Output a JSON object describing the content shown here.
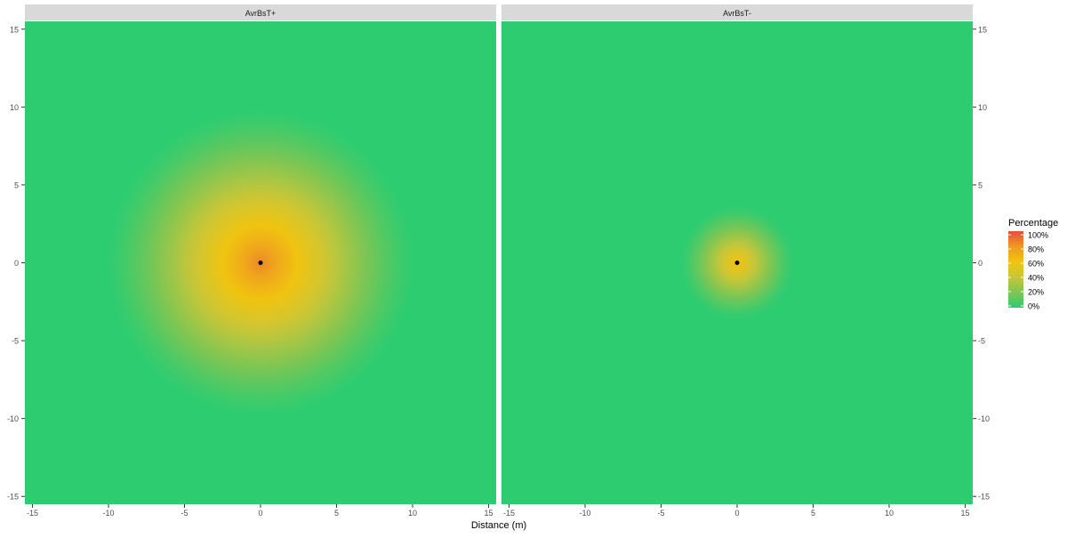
{
  "chart_data": {
    "type": "heatmap",
    "xlabel": "Distance (m)",
    "ylabel": "",
    "xlim": [
      -15.5,
      15.5
    ],
    "ylim": [
      -15.5,
      15.5
    ],
    "x_ticks": [
      -15,
      -10,
      -5,
      0,
      5,
      10,
      15
    ],
    "y_ticks": [
      -15,
      -10,
      -5,
      0,
      5,
      10,
      15
    ],
    "x_tick_labels": [
      "-15",
      "-10",
      "-5",
      "0",
      "5",
      "10",
      "15"
    ],
    "y_tick_labels": [
      "-15",
      "-10",
      "-5",
      "0",
      "5",
      "10",
      "15"
    ],
    "panels": [
      {
        "title": "AvrBsT+",
        "center": [
          0,
          0
        ],
        "peak_percentage": 85,
        "radius_m": 10,
        "marker": [
          0,
          0
        ]
      },
      {
        "title": "AvrBsT-",
        "center": [
          0,
          0
        ],
        "peak_percentage": 62,
        "radius_m": 3.7,
        "marker": [
          0,
          0
        ]
      }
    ],
    "legend": {
      "title": "Percentage",
      "position": "right",
      "breaks": [
        100,
        80,
        60,
        40,
        20,
        0
      ],
      "labels": [
        "100%",
        "80%",
        "60%",
        "40%",
        "20%",
        "0%"
      ],
      "colors": [
        {
          "value": 0,
          "color": "#2ecc71"
        },
        {
          "value": 20,
          "color": "#7ec653"
        },
        {
          "value": 40,
          "color": "#c9c638"
        },
        {
          "value": 60,
          "color": "#f1c40f"
        },
        {
          "value": 80,
          "color": "#ef9a22"
        },
        {
          "value": 100,
          "color": "#e74c3c"
        }
      ]
    },
    "strip_color": "#d9d9d9",
    "marker_color": "#000000"
  }
}
